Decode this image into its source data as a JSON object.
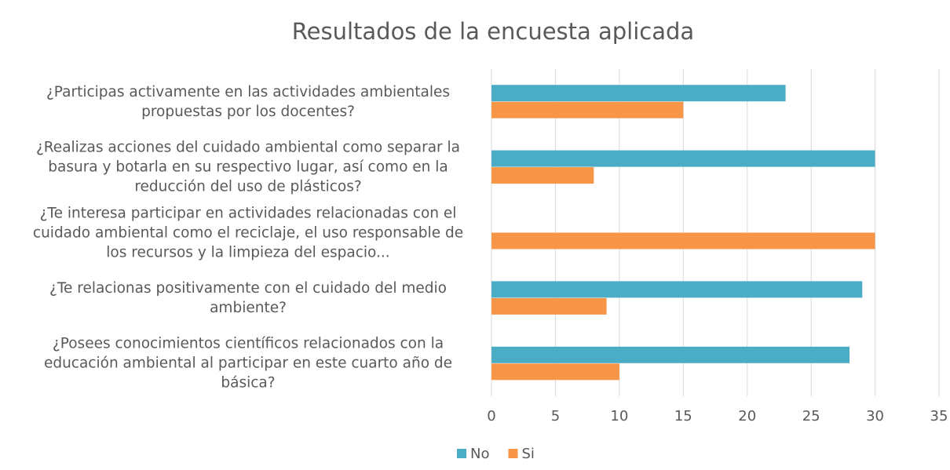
{
  "chart_data": {
    "type": "barh",
    "title": "Resultados de la encuesta aplicada",
    "categories": [
      "¿Participas activamente en las actividades ambientales propuestas por los docentes?",
      "¿Realizas acciones del cuidado ambiental como separar la basura y botarla en su respectivo lugar, así como en la reducción del uso de plásticos?",
      "¿Te interesa participar en actividades relacionadas con el cuidado ambiental como el reciclaje, el uso responsable de los recursos y la limpieza del espacio...",
      "¿Te relacionas positivamente con el cuidado del medio ambiente?",
      "¿Posees conocimientos científicos relacionados con la educación ambiental al participar en este cuarto año de básica?"
    ],
    "series": [
      {
        "name": "No",
        "color": "#4bacc6",
        "values": [
          23,
          30,
          0,
          29,
          28
        ]
      },
      {
        "name": "Si",
        "color": "#f79646",
        "values": [
          15,
          8,
          30,
          9,
          10
        ]
      }
    ],
    "xlim": [
      0,
      35
    ],
    "xticks": [
      0,
      5,
      10,
      15,
      20,
      25,
      30,
      35
    ],
    "grid": true,
    "legend": "bottom"
  }
}
